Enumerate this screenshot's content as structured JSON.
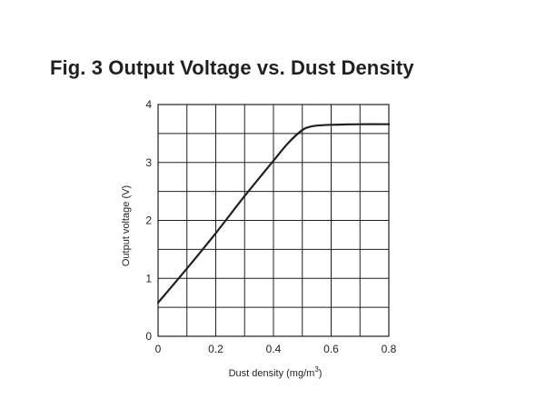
{
  "title": "Fig. 3  Output Voltage vs. Dust Density",
  "chart_data": {
    "type": "line",
    "title": "Fig. 3  Output Voltage vs. Dust Density",
    "xlabel_main": "Dust density (mg/m",
    "xlabel_sup": "3",
    "xlabel_end": ")",
    "ylabel": "Output voltage (V)",
    "xlim": [
      0,
      0.8
    ],
    "ylim": [
      0,
      4
    ],
    "grid": true,
    "x_minor_step": 0.1,
    "y_minor_step": 0.5,
    "x_ticks": [
      {
        "value": 0,
        "label": "0"
      },
      {
        "value": 0.2,
        "label": "0.2"
      },
      {
        "value": 0.4,
        "label": "0.4"
      },
      {
        "value": 0.6,
        "label": "0.6"
      },
      {
        "value": 0.8,
        "label": "0.8"
      }
    ],
    "y_ticks": [
      {
        "value": 0,
        "label": "0"
      },
      {
        "value": 1,
        "label": "1"
      },
      {
        "value": 2,
        "label": "2"
      },
      {
        "value": 3,
        "label": "3"
      },
      {
        "value": 4,
        "label": "4"
      }
    ],
    "series": [
      {
        "x": [
          0,
          0.1,
          0.2,
          0.3,
          0.4,
          0.45,
          0.5,
          0.53,
          0.56,
          0.6,
          0.7,
          0.8
        ],
        "y": [
          0.58,
          1.17,
          1.78,
          2.42,
          3.03,
          3.33,
          3.56,
          3.62,
          3.64,
          3.65,
          3.66,
          3.66
        ]
      }
    ]
  }
}
